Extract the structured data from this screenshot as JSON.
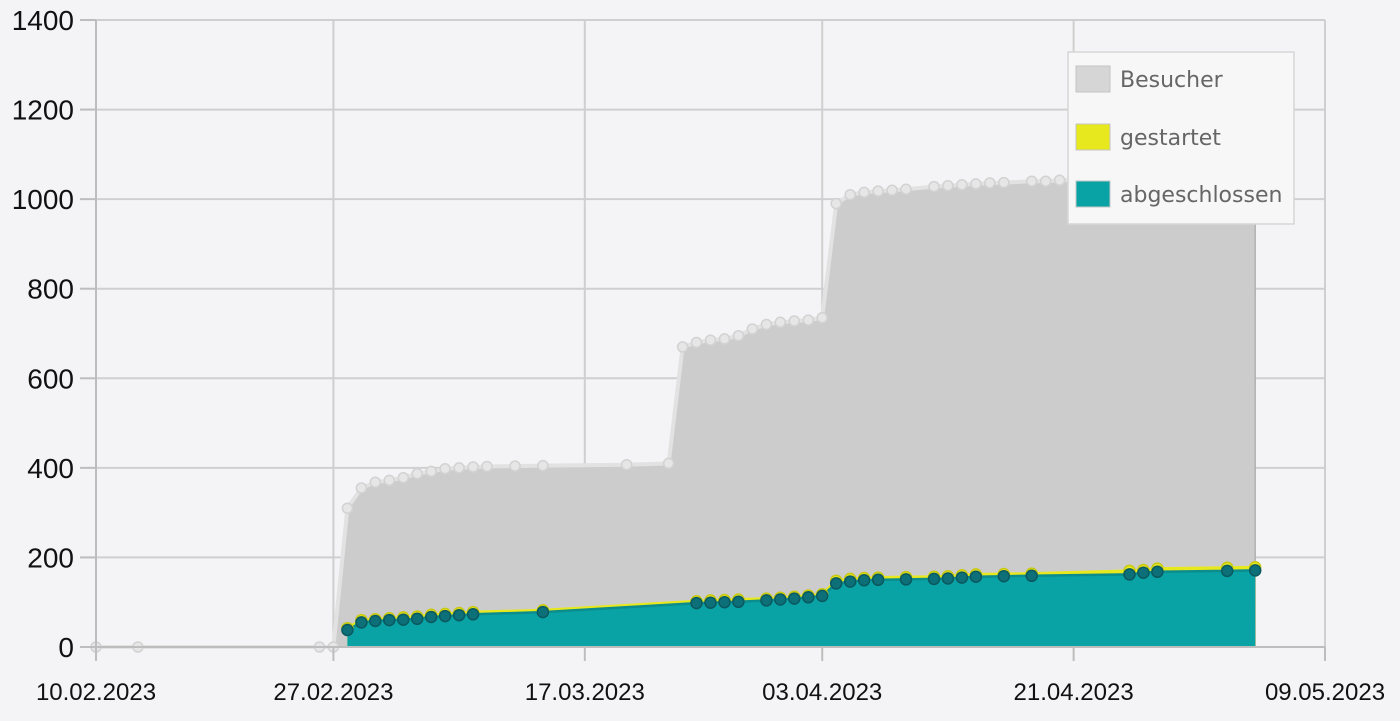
{
  "chart_data": {
    "type": "area",
    "title": "",
    "xlabel": "",
    "ylabel": "",
    "ylim": [
      0,
      1400
    ],
    "y_ticks": [
      "0",
      "200",
      "400",
      "600",
      "800",
      "1000",
      "1200",
      "1400"
    ],
    "x_ticks": [
      "10.02.2023",
      "27.02.2023",
      "17.03.2023",
      "03.04.2023",
      "21.04.2023",
      "09.05.2023"
    ],
    "grid": true,
    "legend_position": "top-right",
    "series": [
      {
        "name": "Besucher",
        "color": "#cccccc",
        "x": [
          "2023-02-10",
          "2023-02-13",
          "2023-02-26",
          "2023-02-27",
          "2023-02-28",
          "2023-03-01",
          "2023-03-02",
          "2023-03-03",
          "2023-03-04",
          "2023-03-05",
          "2023-03-06",
          "2023-03-07",
          "2023-03-08",
          "2023-03-09",
          "2023-03-10",
          "2023-03-12",
          "2023-03-14",
          "2023-03-20",
          "2023-03-23",
          "2023-03-24",
          "2023-03-25",
          "2023-03-26",
          "2023-03-27",
          "2023-03-28",
          "2023-03-29",
          "2023-03-30",
          "2023-03-31",
          "2023-04-01",
          "2023-04-02",
          "2023-04-03",
          "2023-04-04",
          "2023-04-05",
          "2023-04-06",
          "2023-04-07",
          "2023-04-08",
          "2023-04-09",
          "2023-04-11",
          "2023-04-12",
          "2023-04-13",
          "2023-04-14",
          "2023-04-15",
          "2023-04-16",
          "2023-04-18",
          "2023-04-19",
          "2023-04-20",
          "2023-04-25",
          "2023-04-26",
          "2023-04-27",
          "2023-04-28",
          "2023-04-29",
          "2023-05-01",
          "2023-05-02",
          "2023-05-03",
          "2023-05-04"
        ],
        "values": [
          0,
          0,
          0,
          0,
          310,
          355,
          368,
          372,
          378,
          387,
          392,
          398,
          400,
          402,
          403,
          404,
          405,
          407,
          410,
          670,
          680,
          685,
          688,
          695,
          710,
          720,
          725,
          728,
          730,
          735,
          990,
          1010,
          1015,
          1018,
          1020,
          1022,
          1028,
          1030,
          1032,
          1034,
          1036,
          1037,
          1040,
          1040,
          1042,
          1045,
          1090,
          1092,
          1093,
          1094,
          1095,
          1096,
          1097,
          1100
        ]
      },
      {
        "name": "gestartet",
        "color": "#e8e81e",
        "x": [
          "2023-02-28",
          "2023-03-01",
          "2023-03-02",
          "2023-03-03",
          "2023-03-04",
          "2023-03-05",
          "2023-03-06",
          "2023-03-07",
          "2023-03-08",
          "2023-03-09",
          "2023-03-14",
          "2023-03-25",
          "2023-03-26",
          "2023-03-27",
          "2023-03-28",
          "2023-03-30",
          "2023-03-31",
          "2023-04-01",
          "2023-04-02",
          "2023-04-03",
          "2023-04-04",
          "2023-04-05",
          "2023-04-06",
          "2023-04-07",
          "2023-04-09",
          "2023-04-11",
          "2023-04-12",
          "2023-04-13",
          "2023-04-14",
          "2023-04-16",
          "2023-04-18",
          "2023-04-25",
          "2023-04-26",
          "2023-04-27",
          "2023-05-02",
          "2023-05-04"
        ],
        "values": [
          42,
          60,
          62,
          64,
          66,
          68,
          72,
          74,
          76,
          78,
          82,
          102,
          104,
          105,
          106,
          108,
          110,
          112,
          115,
          118,
          148,
          152,
          154,
          155,
          156,
          157,
          158,
          160,
          162,
          163,
          164,
          170,
          172,
          175,
          177,
          178
        ]
      },
      {
        "name": "abgeschlossen",
        "color": "#0aa3a5",
        "x": [
          "2023-02-28",
          "2023-03-01",
          "2023-03-02",
          "2023-03-03",
          "2023-03-04",
          "2023-03-05",
          "2023-03-06",
          "2023-03-07",
          "2023-03-08",
          "2023-03-09",
          "2023-03-14",
          "2023-03-25",
          "2023-03-26",
          "2023-03-27",
          "2023-03-28",
          "2023-03-30",
          "2023-03-31",
          "2023-04-01",
          "2023-04-02",
          "2023-04-03",
          "2023-04-04",
          "2023-04-05",
          "2023-04-06",
          "2023-04-07",
          "2023-04-09",
          "2023-04-11",
          "2023-04-12",
          "2023-04-13",
          "2023-04-14",
          "2023-04-16",
          "2023-04-18",
          "2023-04-25",
          "2023-04-26",
          "2023-04-27",
          "2023-05-02",
          "2023-05-04"
        ],
        "values": [
          38,
          55,
          58,
          60,
          61,
          63,
          67,
          69,
          71,
          73,
          78,
          98,
          99,
          100,
          101,
          104,
          106,
          108,
          111,
          114,
          142,
          146,
          149,
          150,
          151,
          152,
          153,
          155,
          157,
          158,
          159,
          162,
          166,
          168,
          170,
          171
        ]
      }
    ]
  }
}
